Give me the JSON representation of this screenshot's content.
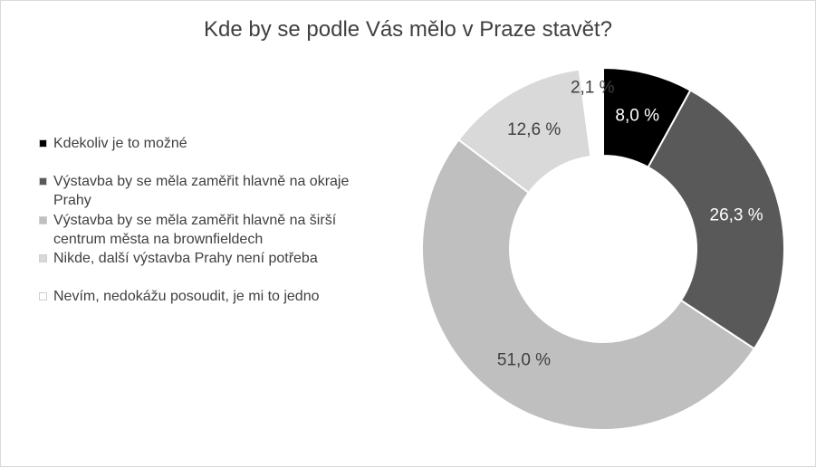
{
  "chart_data": {
    "type": "pie",
    "donut": true,
    "title": "Kde by se podle Vás mělo v Praze stavět?",
    "categories": [
      "Kdekoliv je to možné",
      "Výstavba by se měla zaměřit hlavně na okraje Prahy",
      "Výstavba by se měla zaměřit hlavně na širší centrum města na brownfieldech",
      "Nikde, další výstavba Prahy není potřeba",
      "Nevím, nedokážu posoudit, je mi to jedno"
    ],
    "values": [
      8.0,
      26.3,
      51.0,
      12.6,
      2.1
    ],
    "value_labels": [
      "8,0 %",
      "26,3 %",
      "51,0 %",
      "12,6 %",
      "2,1 %"
    ],
    "colors": [
      "#000000",
      "#595959",
      "#bfbfbf",
      "#d9d9d9",
      "#ffffff"
    ],
    "label_colors": [
      "#ffffff",
      "#ffffff",
      "#404040",
      "#404040",
      "#404040"
    ],
    "legend_position": "left"
  }
}
